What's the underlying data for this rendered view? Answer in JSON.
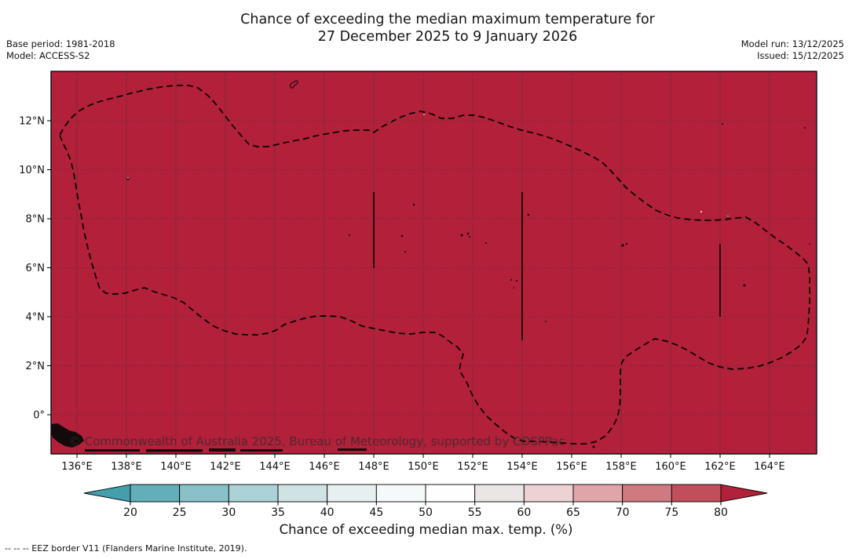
{
  "header": {
    "title_line1": "Chance of exceeding the median maximum temperature for",
    "title_line2": "27 December 2025 to 9 January 2026",
    "base_period": "Base period: 1981-2018",
    "model": "Model: ACCESS-S2",
    "model_run": "Model run: 13/12/2025",
    "issued": "Issued: 15/12/2025"
  },
  "map": {
    "watermark": "© Commonwealth of Australia 2025, Bureau of Meteorology, supported by COSPPac",
    "x_tick_labels": [
      "136°E",
      "138°E",
      "140°E",
      "142°E",
      "144°E",
      "146°E",
      "148°E",
      "150°E",
      "152°E",
      "154°E",
      "156°E",
      "158°E",
      "160°E",
      "162°E",
      "164°E"
    ],
    "y_tick_labels": [
      "12°N",
      "10°N",
      "8°N",
      "6°N",
      "4°N",
      "2°N",
      "0°"
    ],
    "fill_color": "#b22039"
  },
  "colorbar": {
    "tick_labels": [
      "20",
      "25",
      "30",
      "35",
      "40",
      "45",
      "50",
      "55",
      "60",
      "65",
      "70",
      "75",
      "80"
    ],
    "segment_colors": [
      "#62afba",
      "#88c1c8",
      "#abd2d6",
      "#cfe2e4",
      "#e7f0f1",
      "#f6f9f9",
      "#fefefe",
      "#eae6e6",
      "#eed2d3",
      "#dfa5a9",
      "#cf7a81",
      "#c14f59"
    ],
    "arrow_left_color": "#42a0ad",
    "arrow_right_color": "#b22039",
    "label": "Chance of exceeding median max. temp. (%)"
  },
  "footnote": "--  --  -- EEZ border V11 (Flanders Marine Institute, 2019).",
  "chart_data": {
    "type": "heatmap",
    "title": "Chance of exceeding the median maximum temperature for 27 December 2025 to 9 January 2026",
    "field": "Chance of exceeding median max. temp. (%)",
    "lon_ticks_deg_e": [
      136,
      138,
      140,
      142,
      144,
      146,
      148,
      150,
      152,
      154,
      156,
      158,
      160,
      162,
      164
    ],
    "lat_ticks_deg_n": [
      12,
      10,
      8,
      6,
      4,
      2,
      0
    ],
    "colorbar_ticks": [
      20,
      25,
      30,
      35,
      40,
      45,
      50,
      55,
      60,
      65,
      70,
      75,
      80
    ],
    "colorbar_range_shown": "<20 to >80",
    "values_summary": "Entire mapped EEZ region is shaded in the >80% class (dark red); dashed line marks EEZ border V11",
    "model": "ACCESS-S2",
    "base_period": "1981-2018",
    "model_run": "13/12/2025",
    "issued": "15/12/2025"
  }
}
